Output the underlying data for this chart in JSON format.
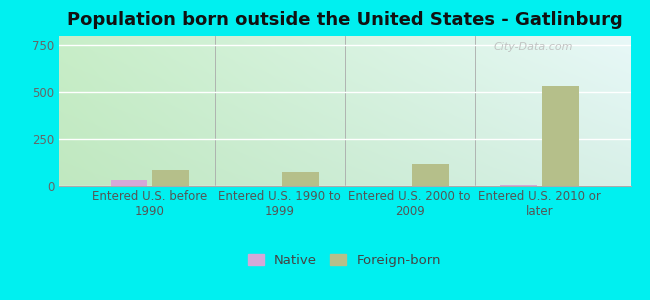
{
  "title": "Population born outside the United States - Gatlinburg",
  "categories": [
    "Entered U.S. before\n1990",
    "Entered U.S. 1990 to\n1999",
    "Entered U.S. 2000 to\n2009",
    "Entered U.S. 2010 or\nlater"
  ],
  "native_values": [
    30,
    0,
    0,
    5
  ],
  "foreign_values": [
    85,
    75,
    120,
    535
  ],
  "native_color": "#d4a8d8",
  "foreign_color": "#b5bf8a",
  "background_color": "#00f0f0",
  "ylim": [
    0,
    800
  ],
  "yticks": [
    0,
    250,
    500,
    750
  ],
  "bar_width": 0.28,
  "watermark": "City-Data.com",
  "title_fontsize": 13,
  "tick_fontsize": 8.5,
  "legend_fontsize": 9.5
}
